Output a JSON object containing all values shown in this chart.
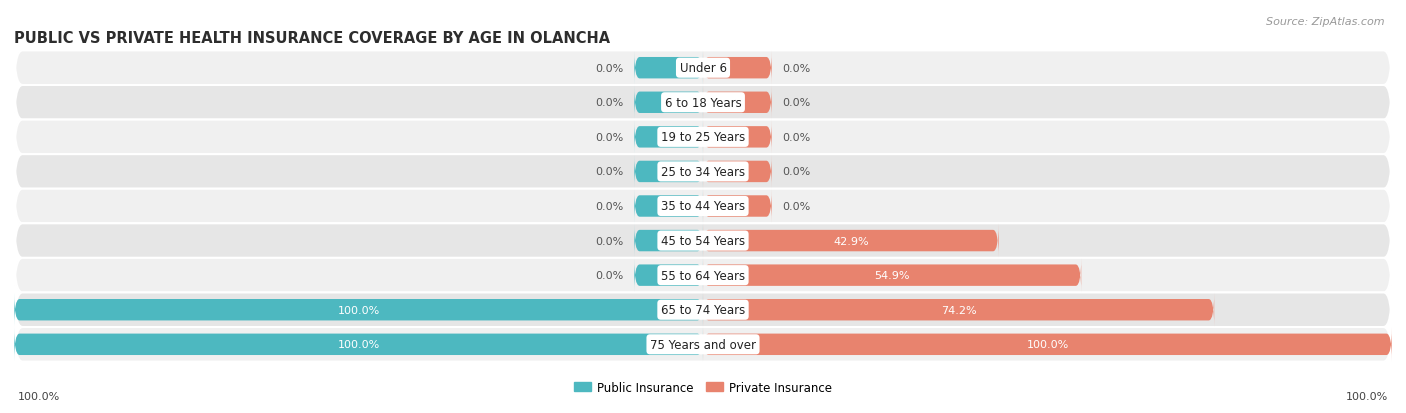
{
  "title": "PUBLIC VS PRIVATE HEALTH INSURANCE COVERAGE BY AGE IN OLANCHA",
  "source": "Source: ZipAtlas.com",
  "categories": [
    "Under 6",
    "6 to 18 Years",
    "19 to 25 Years",
    "25 to 34 Years",
    "35 to 44 Years",
    "45 to 54 Years",
    "55 to 64 Years",
    "65 to 74 Years",
    "75 Years and over"
  ],
  "public_values": [
    0.0,
    0.0,
    0.0,
    0.0,
    0.0,
    0.0,
    0.0,
    100.0,
    100.0
  ],
  "private_values": [
    0.0,
    0.0,
    0.0,
    0.0,
    0.0,
    42.9,
    54.9,
    74.2,
    100.0
  ],
  "public_color": "#4db8c0",
  "private_color": "#e8836e",
  "row_bg_color_odd": "#f0f0f0",
  "row_bg_color_even": "#e6e6e6",
  "title_fontsize": 10.5,
  "cat_fontsize": 8.5,
  "val_fontsize": 8.0,
  "source_fontsize": 8,
  "bar_height": 0.62,
  "max_value": 100.0,
  "stub_size": 10.0,
  "x_axis_label": "100.0%",
  "legend_labels": [
    "Public Insurance",
    "Private Insurance"
  ],
  "title_color": "#2d2d2d",
  "text_color": "#444444",
  "source_color": "#999999",
  "value_label_dark": "#ffffff",
  "value_label_light": "#555555",
  "cat_label_color": "#222222"
}
